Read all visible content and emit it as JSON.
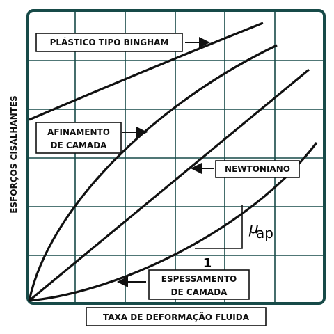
{
  "axes": {
    "y_label": "ESFORÇOS CISALHANTES",
    "x_label": "TAXA DE DEFORMAÇÃO FLUIDA"
  },
  "curves": {
    "bingham": "PLÁSTICO TIPO BINGHAM",
    "thinning": [
      "AFINAMENTO",
      "DE CAMADA"
    ],
    "newtonian": "NEWTONIANO",
    "thickening": [
      "ESPESSAMENTO",
      "DE CAMADA"
    ]
  },
  "slope": {
    "run": "1",
    "symbol": "μ",
    "subscript": "ap"
  }
}
